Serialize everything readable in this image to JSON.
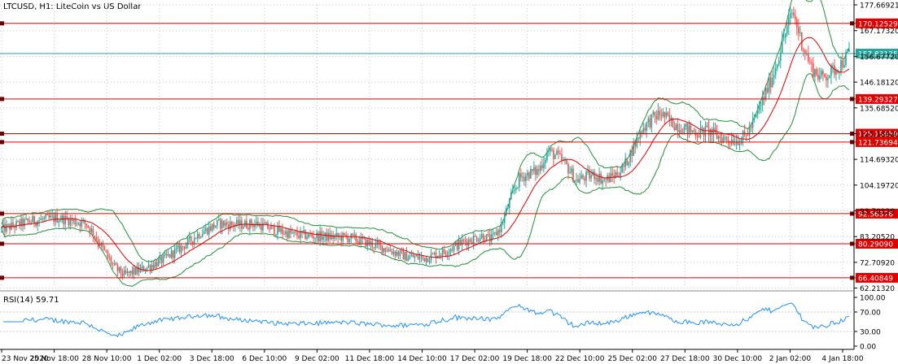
{
  "header": {
    "title": "LTCUSD, H1:  LiteCoin vs US Dollar"
  },
  "colors": {
    "bull": "#26a69a",
    "bear": "#ef5350",
    "ma": "#e00000",
    "bands": "#1f8f3a",
    "hline": "#e00000",
    "current": "#26a69a",
    "rsi": "#1e90ff",
    "grid": "#c8c8c8",
    "axis": "#000000"
  },
  "chart_data": [
    {
      "type": "candlestick",
      "symbol": "LTCUSD",
      "timeframe": "H1",
      "title": "LTCUSD, H1:  LiteCoin vs US Dollar",
      "grid": true,
      "ylim": [
        62.4,
        177.66921
      ],
      "y_ticks": [
        "177.66921",
        "167.17320",
        "156.67720",
        "146.18120",
        "135.68520",
        "125.18920",
        "114.69320",
        "104.19720",
        "93.70120",
        "83.20520",
        "72.70920",
        "62.21320"
      ],
      "x_ticks": [
        "23 Nov 2020",
        "25 Nov 18:00",
        "28 Nov 10:00",
        "1 Dec 02:00",
        "3 Dec 18:00",
        "6 Dec 10:00",
        "9 Dec 02:00",
        "11 Dec 18:00",
        "14 Dec 10:00",
        "17 Dec 02:00",
        "19 Dec 18:00",
        "22 Dec 10:00",
        "25 Dec 02:00",
        "27 Dec 18:00",
        "30 Dec 10:00",
        "2 Jan 02:00",
        "4 Jan 18:00"
      ],
      "horizontal_levels": [
        {
          "value": 170.12529,
          "label": "170.12529",
          "style": "support-resistance"
        },
        {
          "value": 157.83125,
          "label": "157.83125",
          "style": "current-price"
        },
        {
          "value": 139.29327,
          "label": "139.29327",
          "style": "support-resistance"
        },
        {
          "value": 125.15659,
          "label": "125.15659",
          "style": "support-resistance"
        },
        {
          "value": 121.73694,
          "label": "121.73694",
          "style": "support-resistance"
        },
        {
          "value": 92.56376,
          "label": "92.56376",
          "style": "support-resistance"
        },
        {
          "value": 80.2909,
          "label": "80.29090",
          "style": "support-resistance"
        },
        {
          "value": 66.40849,
          "label": "66.40849",
          "style": "support-resistance"
        }
      ],
      "price_path": [
        [
          0,
          86.2
        ],
        [
          3,
          89.5
        ],
        [
          6,
          90.8
        ],
        [
          9,
          88.5
        ],
        [
          10,
          83.0
        ],
        [
          11,
          76.5
        ],
        [
          12,
          70.5
        ],
        [
          13,
          67.5
        ],
        [
          15,
          70.0
        ],
        [
          17,
          73.5
        ],
        [
          19,
          78.5
        ],
        [
          21,
          84.5
        ],
        [
          23,
          88.5
        ],
        [
          25,
          88.0
        ],
        [
          27,
          88.5
        ],
        [
          29,
          86.0
        ],
        [
          31,
          84.0
        ],
        [
          33,
          83.5
        ],
        [
          35,
          83.0
        ],
        [
          37,
          82.8
        ],
        [
          39,
          80.5
        ],
        [
          41,
          78.0
        ],
        [
          43,
          75.0
        ],
        [
          45,
          74.5
        ],
        [
          47,
          77.0
        ],
        [
          49,
          81.0
        ],
        [
          51,
          83.5
        ],
        [
          52,
          82.0
        ],
        [
          53,
          87.0
        ],
        [
          54,
          98.0
        ],
        [
          55,
          107.0
        ],
        [
          56,
          109.0
        ],
        [
          57,
          110.0
        ],
        [
          58,
          118.0
        ],
        [
          59,
          116.0
        ],
        [
          60,
          112.0
        ],
        [
          61,
          106.0
        ],
        [
          62,
          107.5
        ],
        [
          63,
          108.5
        ],
        [
          64,
          106.0
        ],
        [
          65,
          108.0
        ],
        [
          66,
          111.0
        ],
        [
          67,
          119.0
        ],
        [
          68,
          127.0
        ],
        [
          69,
          131.0
        ],
        [
          70,
          133.5
        ],
        [
          71,
          130.0
        ],
        [
          72,
          128.0
        ],
        [
          73,
          126.5
        ],
        [
          74,
          125.5
        ],
        [
          75,
          126.5
        ],
        [
          76,
          124.0
        ],
        [
          77,
          123.0
        ],
        [
          78,
          122.5
        ],
        [
          79,
          124.0
        ],
        [
          80,
          131.0
        ],
        [
          81,
          140.5
        ],
        [
          82,
          150.0
        ],
        [
          83,
          163.5
        ],
        [
          84,
          175.0
        ],
        [
          85,
          162.0
        ],
        [
          86,
          152.0
        ],
        [
          87,
          148.0
        ],
        [
          88,
          150.0
        ],
        [
          89,
          153.0
        ],
        [
          90,
          157.8
        ]
      ]
    },
    {
      "type": "line",
      "title": "RSI(14) 59.71",
      "indicator": "RSI",
      "period": 14,
      "last_value": 59.71,
      "ylim": [
        0,
        100
      ],
      "y_ticks": [
        "100.00",
        "70.00",
        "30.00",
        "0.00"
      ],
      "levels": [
        70,
        30
      ]
    }
  ]
}
